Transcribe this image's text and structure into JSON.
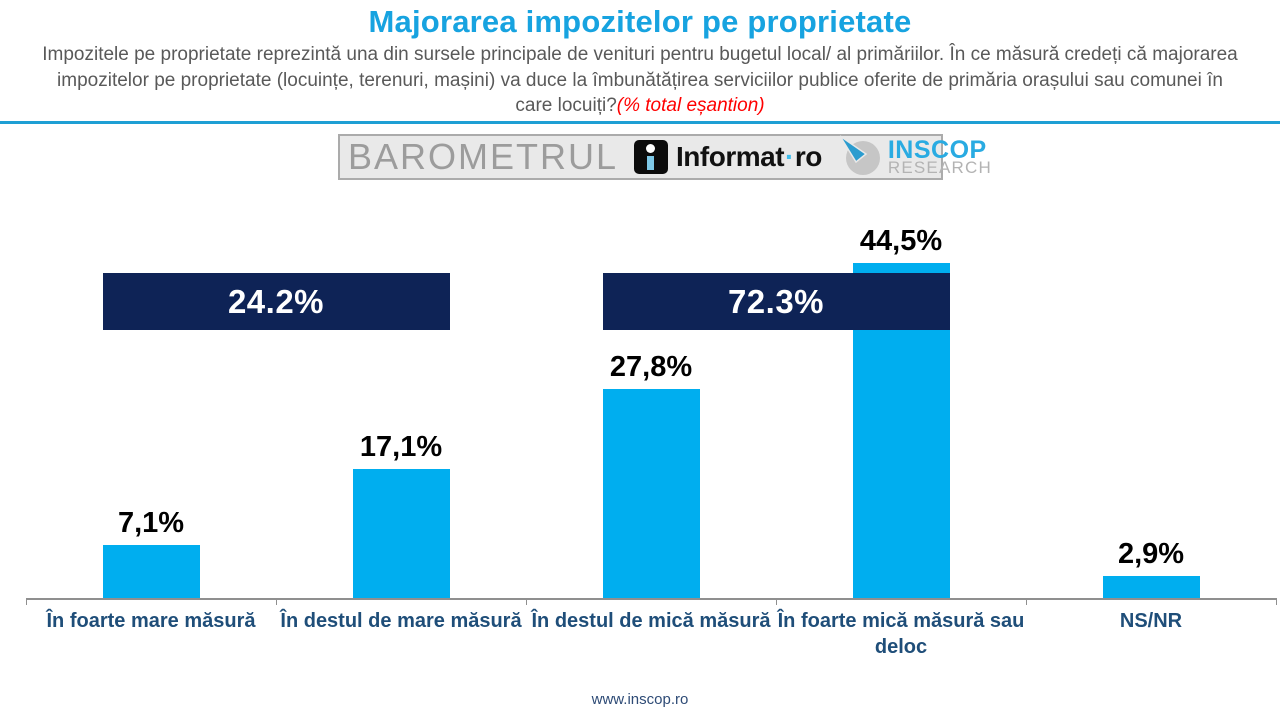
{
  "header": {
    "title": "Majorarea impozitelor pe proprietate",
    "subtitle": "Impozitele pe proprietate reprezintă una din sursele principale de venituri pentru bugetul local/ al primăriilor. În ce măsură credeți că majorarea impozitelor pe proprietate (locuințe, terenuri, mașini) va duce la îmbunătățirea serviciilor publice oferite de primăria orașului sau comunei în care locuiți?",
    "sample_note": "(% total eșantion)"
  },
  "logo_bar": {
    "barometrul": "BAROMETRUL",
    "informat_left": "Informat",
    "informat_dot": "·",
    "informat_right": "ro",
    "inscop_name": "INSCOP",
    "inscop_sub": "RESEARCH"
  },
  "chart_data": {
    "type": "bar",
    "title": "Majorarea impozitelor pe proprietate",
    "categories": [
      "În foarte mare măsură",
      "În destul de mare măsură",
      "În destul de mică măsură",
      "În foarte mică măsură sau deloc",
      "NS/NR"
    ],
    "values": [
      7.1,
      17.1,
      27.8,
      44.5,
      2.9
    ],
    "value_labels": [
      "7,1%",
      "17,1%",
      "27,8%",
      "44,5%",
      "2,9%"
    ],
    "bar_color": "#00AEEF",
    "aggregates": [
      {
        "label": "24.2%",
        "span": [
          0,
          1
        ],
        "color": "#0E2356"
      },
      {
        "label": "72.3%",
        "span": [
          2,
          3
        ],
        "color": "#0E2356"
      }
    ],
    "xlabel": "",
    "ylabel": "% total eșantion",
    "ylim": [
      0,
      47
    ],
    "grid": false,
    "legend": "none"
  },
  "footer": {
    "url": "www.inscop.ro"
  },
  "colors": {
    "title_blue": "#17A3E0",
    "bar_cyan": "#00AEEF",
    "banner_navy": "#0E2356",
    "category_navy": "#1F4E79",
    "subtitle_gray": "#595959",
    "note_red": "#FF0000"
  }
}
